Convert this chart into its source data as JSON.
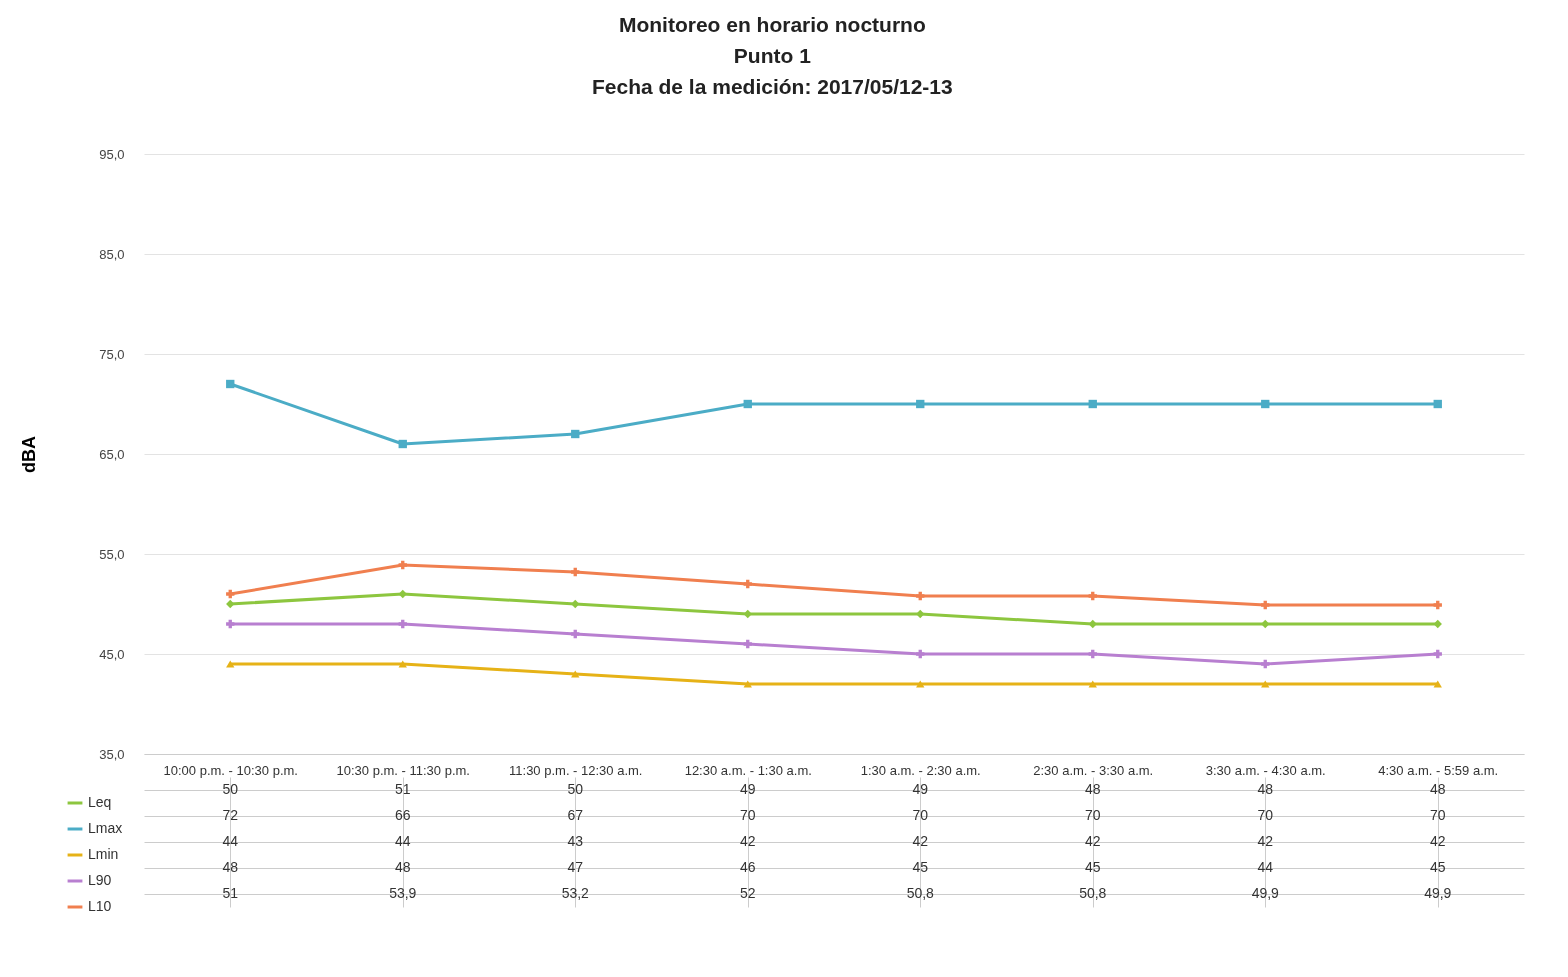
{
  "chart_data": {
    "type": "line",
    "title": "Monitoreo en horario nocturno\nPunto 1\nFecha de la medición: 2017/05/12-13",
    "ylabel": "dBA",
    "categories": [
      "10:00 p.m. - 10:30 p.m.",
      "10:30 p.m. - 11:30 p.m.",
      "11:30 p.m. - 12:30 a.m.",
      "12:30 a.m. - 1:30 a.m.",
      "1:30 a.m. - 2:30 a.m.",
      "2:30 a.m. - 3:30 a.m.",
      "3:30 a.m. - 4:30 a.m.",
      "4:30 a.m. - 5:59 a.m."
    ],
    "series": [
      {
        "name": "Leq",
        "color": "#8dc63f",
        "marker": "diamond",
        "values": [
          50,
          51,
          50,
          49,
          49,
          48,
          48,
          48
        ],
        "value_labels": [
          "50",
          "51",
          "50",
          "49",
          "49",
          "48",
          "48",
          "48"
        ]
      },
      {
        "name": "Lmax",
        "color": "#4bacc6",
        "marker": "square",
        "values": [
          72,
          66,
          67,
          70,
          70,
          70,
          70,
          70
        ],
        "value_labels": [
          "72",
          "66",
          "67",
          "70",
          "70",
          "70",
          "70",
          "70"
        ]
      },
      {
        "name": "Lmin",
        "color": "#e6b217",
        "marker": "triangle",
        "values": [
          44,
          44,
          43,
          42,
          42,
          42,
          42,
          42
        ],
        "value_labels": [
          "44",
          "44",
          "43",
          "42",
          "42",
          "42",
          "42",
          "42"
        ]
      },
      {
        "name": "L90",
        "color": "#b87fd0",
        "marker": "cross",
        "values": [
          48,
          48,
          47,
          46,
          45,
          45,
          44,
          45
        ],
        "value_labels": [
          "48",
          "48",
          "47",
          "46",
          "45",
          "45",
          "44",
          "45"
        ]
      },
      {
        "name": "L10",
        "color": "#f07f4f",
        "marker": "cross",
        "values": [
          51,
          53.9,
          53.2,
          52,
          50.8,
          50.8,
          49.9,
          49.9
        ],
        "value_labels": [
          "51",
          "53,9",
          "53,2",
          "52",
          "50,8",
          "50,8",
          "49,9",
          "49,9"
        ]
      }
    ],
    "ylim": [
      35,
      95
    ],
    "yticks": [
      {
        "value": 35,
        "label": "35,0"
      },
      {
        "value": 45,
        "label": "45,0"
      },
      {
        "value": 55,
        "label": "55,0"
      },
      {
        "value": 65,
        "label": "65,0"
      },
      {
        "value": 75,
        "label": "75,0"
      },
      {
        "value": 85,
        "label": "85,0"
      },
      {
        "value": 95,
        "label": "95,0"
      }
    ],
    "grid": "y",
    "legend": "bottom left",
    "line_style": "solid"
  }
}
